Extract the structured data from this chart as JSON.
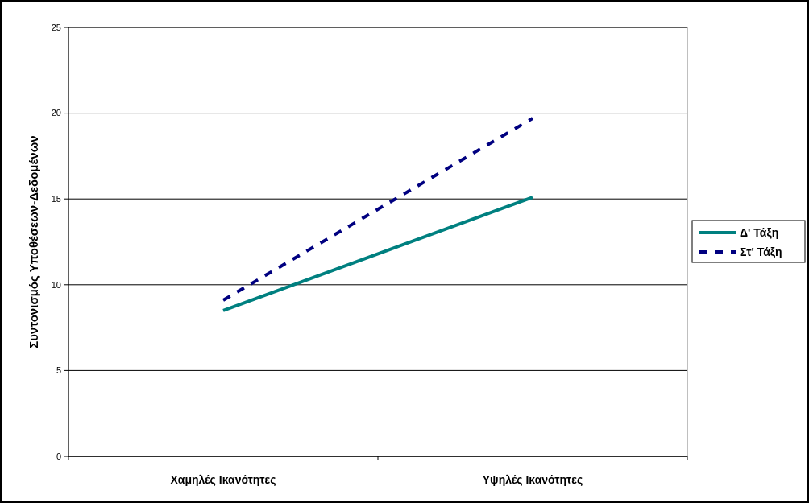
{
  "chart_data": {
    "type": "line",
    "ylabel": "Συντονισμός Υποθέσεων-Δεδομένων",
    "categories": [
      "Χαμηλές Ικανότητες",
      "Υψηλές Ικανότητες"
    ],
    "series": [
      {
        "name": "Δ' Τάξη",
        "color": "#008080",
        "values": [
          8.5,
          15.1
        ],
        "line_style": "solid"
      },
      {
        "name": "Στ' Τάξη",
        "color": "#000080",
        "values": [
          9.1,
          19.7
        ],
        "line_style": "dashed"
      }
    ],
    "ylim": [
      0,
      25
    ],
    "yticks": [
      0,
      5,
      10,
      15,
      20,
      25
    ],
    "grid": "y",
    "legend": "right",
    "marker": "none"
  }
}
